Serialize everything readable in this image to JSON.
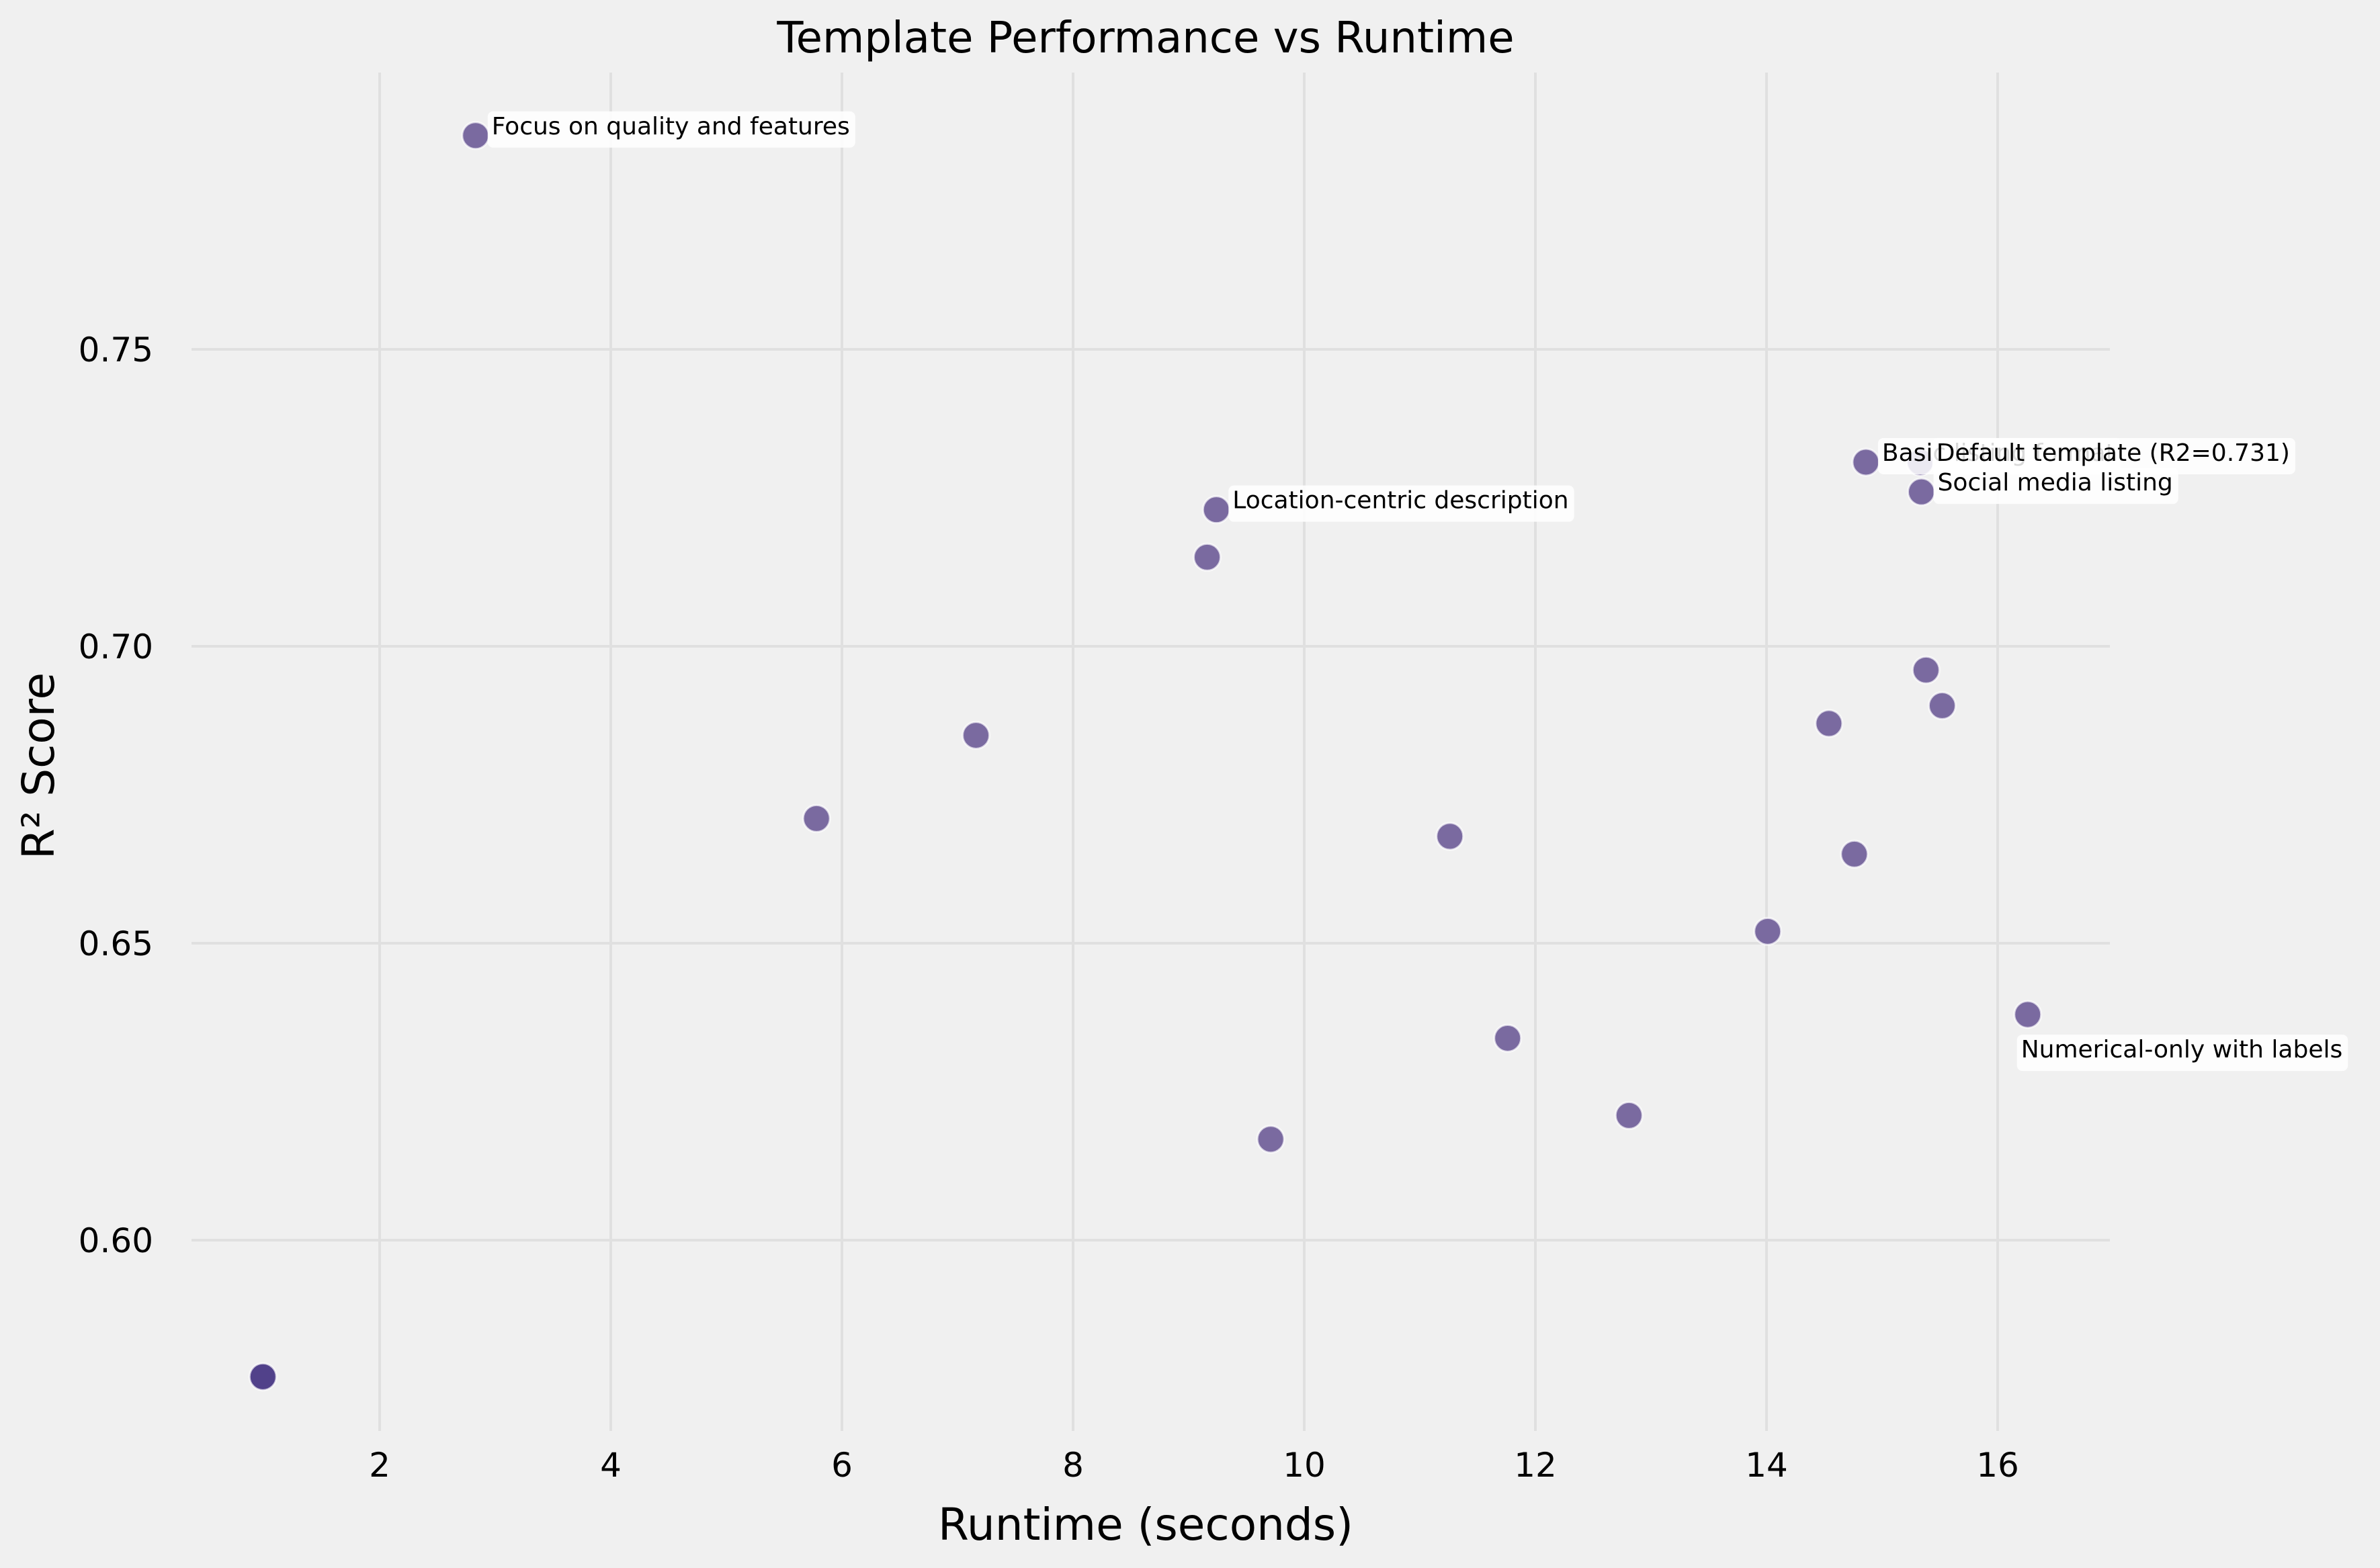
{
  "chart_data": {
    "type": "scatter",
    "title": "Template Performance vs Runtime",
    "xlabel": "Runtime (seconds)",
    "ylabel": "R² Score",
    "xlim": [
      0.1,
      17.1
    ],
    "ylim": [
      0.566,
      0.797
    ],
    "xticks": [
      2,
      4,
      6,
      8,
      10,
      12,
      14,
      16
    ],
    "yticks": [
      0.6,
      0.65,
      0.7,
      0.75
    ],
    "ytick_labels": [
      "0.60",
      "0.65",
      "0.70",
      "0.75"
    ],
    "grid": true,
    "legend": null,
    "background": "#f0f0f0",
    "point_color": "#7a6aa0",
    "highlight_color": "#51418a",
    "points": [
      {
        "x": 2.83,
        "y": 0.786,
        "label": "Focus on quality and features"
      },
      {
        "x": 0.99,
        "y": 0.577,
        "label": "",
        "highlight": true
      },
      {
        "x": 5.78,
        "y": 0.671,
        "label": ""
      },
      {
        "x": 7.16,
        "y": 0.685,
        "label": ""
      },
      {
        "x": 9.16,
        "y": 0.715,
        "label": ""
      },
      {
        "x": 9.24,
        "y": 0.723,
        "label": "Location-centric description"
      },
      {
        "x": 9.71,
        "y": 0.617,
        "label": ""
      },
      {
        "x": 11.26,
        "y": 0.668,
        "label": ""
      },
      {
        "x": 11.76,
        "y": 0.634,
        "label": ""
      },
      {
        "x": 12.81,
        "y": 0.621,
        "label": ""
      },
      {
        "x": 14.01,
        "y": 0.652,
        "label": ""
      },
      {
        "x": 14.54,
        "y": 0.687,
        "label": ""
      },
      {
        "x": 14.76,
        "y": 0.665,
        "label": ""
      },
      {
        "x": 14.86,
        "y": 0.731,
        "label": "Basic listing format"
      },
      {
        "x": 15.33,
        "y": 0.731,
        "label": "Default template (R2=0.731)"
      },
      {
        "x": 15.34,
        "y": 0.726,
        "label": "Social media listing"
      },
      {
        "x": 15.38,
        "y": 0.696,
        "label": ""
      },
      {
        "x": 15.52,
        "y": 0.69,
        "label": ""
      },
      {
        "x": 16.26,
        "y": 0.638,
        "label": "Numerical-only with labels",
        "label_below": true
      }
    ]
  }
}
